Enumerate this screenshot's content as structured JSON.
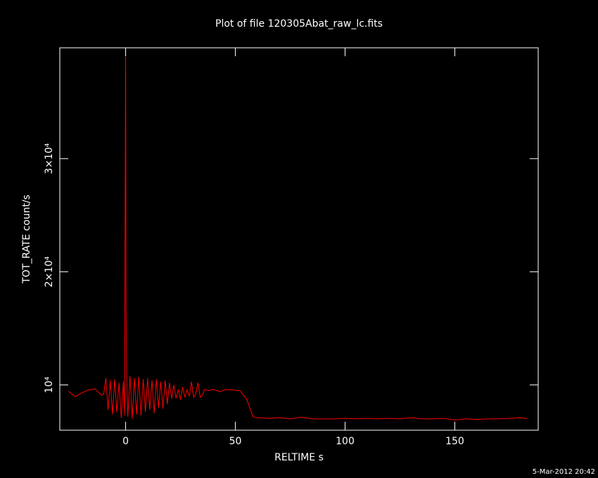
{
  "chart_data": {
    "type": "line",
    "title": "Plot of file 120305Abat_raw_lc.fits",
    "x_label": "RELTIME  s",
    "y_label": "TOT_RATE  count/s",
    "footer": "5-Mar-2012 20:42",
    "color": "#ff0000",
    "xlim": [
      -30,
      188
    ],
    "ylim": [
      6000,
      39800
    ],
    "xticks": [
      0,
      50,
      100,
      150
    ],
    "yticks": [
      {
        "value": 10000,
        "label": "10⁴"
      },
      {
        "value": 20000,
        "label": "2×10⁴"
      },
      {
        "value": 30000,
        "label": "3×10⁴"
      }
    ],
    "x": [
      -26,
      -23,
      -20,
      -17,
      -14,
      -11,
      -10,
      -9,
      -8,
      -7,
      -6,
      -5,
      -4,
      -3,
      -2,
      -1,
      -0.5,
      0,
      0.2,
      0.5,
      1,
      2,
      3,
      4,
      5,
      6,
      7,
      8,
      9,
      10,
      11,
      12,
      13,
      14,
      15,
      16,
      17,
      18,
      19,
      20,
      21,
      22,
      23,
      24,
      25,
      26,
      27,
      28,
      29,
      30,
      31,
      32,
      33,
      34,
      35,
      36,
      38,
      40,
      43,
      46,
      49,
      52,
      55,
      58,
      60,
      65,
      70,
      75,
      80,
      85,
      90,
      95,
      100,
      105,
      110,
      115,
      120,
      125,
      130,
      135,
      140,
      145,
      150,
      155,
      160,
      165,
      170,
      175,
      180,
      183
    ],
    "values": [
      9450,
      8950,
      9300,
      9550,
      9650,
      9100,
      9200,
      10600,
      7800,
      10400,
      7400,
      10500,
      7600,
      10200,
      7100,
      10300,
      7300,
      39000,
      16500,
      10700,
      7200,
      10800,
      7000,
      10600,
      7400,
      10700,
      7300,
      10500,
      7600,
      10600,
      7800,
      10400,
      7500,
      10500,
      8000,
      10300,
      7900,
      10400,
      8300,
      10200,
      8800,
      10000,
      8800,
      9600,
      8700,
      9800,
      8900,
      9600,
      9000,
      10300,
      8900,
      9200,
      10200,
      8900,
      9100,
      9600,
      9500,
      9600,
      9400,
      9600,
      9550,
      9500,
      8800,
      7200,
      7100,
      7050,
      7100,
      7000,
      7150,
      7000,
      7000,
      7000,
      7050,
      7000,
      7050,
      7000,
      7050,
      7000,
      7100,
      7000,
      7000,
      7050,
      6900,
      7000,
      6950,
      7000,
      7000,
      7050,
      7100,
      7000
    ]
  }
}
